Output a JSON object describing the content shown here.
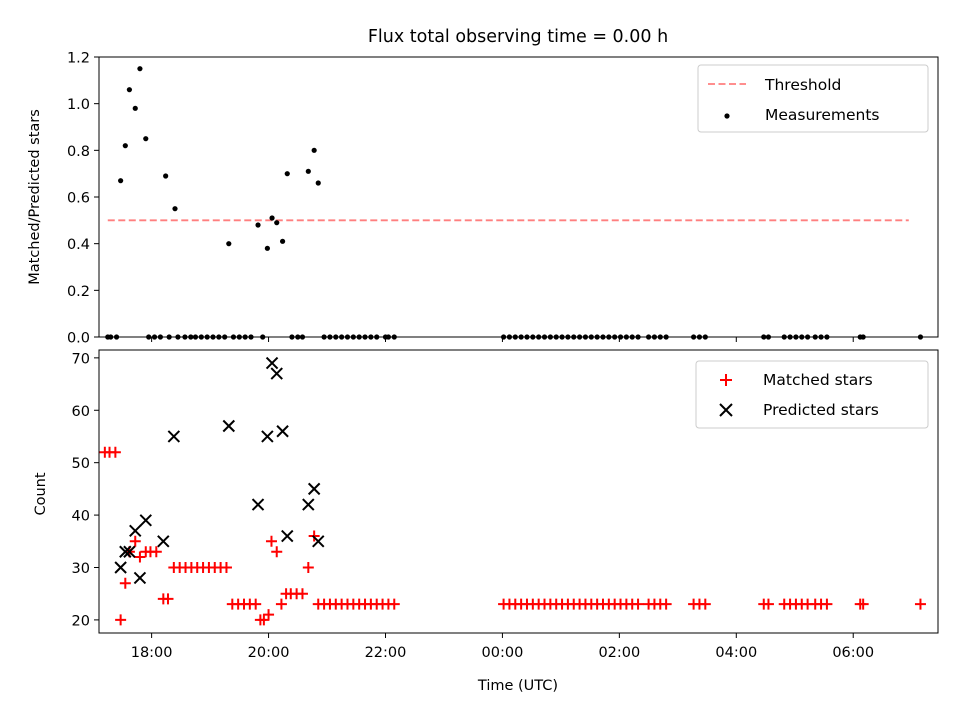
{
  "chart_data": [
    {
      "type": "scatter",
      "title": "Flux total observing time = 0.00 h",
      "ylabel": "Matched/Predicted stars",
      "xlabel": "",
      "xlim": [
        -6.9,
        7.45
      ],
      "ylim": [
        0,
        1.2
      ],
      "yticks": [
        0.0,
        0.2,
        0.4,
        0.6,
        0.8,
        1.0,
        1.2
      ],
      "ytick_labels": [
        "0.0",
        "0.2",
        "0.4",
        "0.6",
        "0.8",
        "1.0",
        "1.2"
      ],
      "grid": false,
      "legend": {
        "position": "top-right",
        "entries": [
          "Threshold",
          "Measurements"
        ]
      },
      "threshold": {
        "name": "Threshold",
        "value": 0.5,
        "x": [
          -6.75,
          6.95
        ],
        "color": "#ff7f7f"
      },
      "series": [
        {
          "name": "Measurements",
          "color": "#000000",
          "points": [
            [
              -6.75,
              0
            ],
            [
              -6.7,
              0
            ],
            [
              -6.6,
              0
            ],
            [
              -6.53,
              0.67
            ],
            [
              -6.45,
              0.82
            ],
            [
              -6.38,
              1.06
            ],
            [
              -6.28,
              0.98
            ],
            [
              -6.2,
              1.15
            ],
            [
              -6.1,
              0.85
            ],
            [
              -6.05,
              0
            ],
            [
              -5.95,
              0
            ],
            [
              -5.85,
              0
            ],
            [
              -5.76,
              0.69
            ],
            [
              -5.7,
              0
            ],
            [
              -5.6,
              0.55
            ],
            [
              -5.55,
              0
            ],
            [
              -5.43,
              0
            ],
            [
              -5.33,
              0
            ],
            [
              -5.25,
              0
            ],
            [
              -5.15,
              0
            ],
            [
              -5.05,
              0
            ],
            [
              -4.95,
              0
            ],
            [
              -4.85,
              0
            ],
            [
              -4.75,
              0
            ],
            [
              -4.68,
              0.4
            ],
            [
              -4.6,
              0
            ],
            [
              -4.5,
              0
            ],
            [
              -4.4,
              0
            ],
            [
              -4.3,
              0
            ],
            [
              -4.18,
              0.48
            ],
            [
              -4.1,
              0
            ],
            [
              -4.02,
              0.38
            ],
            [
              -3.94,
              0.51
            ],
            [
              -3.86,
              0.49
            ],
            [
              -3.76,
              0.41
            ],
            [
              -3.68,
              0.7
            ],
            [
              -3.6,
              0
            ],
            [
              -3.5,
              0
            ],
            [
              -3.42,
              0
            ],
            [
              -3.32,
              0.71
            ],
            [
              -3.22,
              0.8
            ],
            [
              -3.15,
              0.66
            ],
            [
              -3.05,
              0
            ],
            [
              -2.95,
              0
            ],
            [
              -2.85,
              0
            ],
            [
              -2.75,
              0
            ],
            [
              -2.65,
              0
            ],
            [
              -2.55,
              0
            ],
            [
              -2.45,
              0
            ],
            [
              -2.35,
              0
            ],
            [
              -2.25,
              0
            ],
            [
              -2.15,
              0
            ],
            [
              -2.0,
              0
            ],
            [
              -1.95,
              0
            ],
            [
              -1.85,
              0
            ],
            [
              0.02,
              0
            ],
            [
              0.12,
              0
            ],
            [
              0.22,
              0
            ],
            [
              0.32,
              0
            ],
            [
              0.42,
              0
            ],
            [
              0.52,
              0
            ],
            [
              0.62,
              0
            ],
            [
              0.72,
              0
            ],
            [
              0.82,
              0
            ],
            [
              0.92,
              0
            ],
            [
              1.02,
              0
            ],
            [
              1.12,
              0
            ],
            [
              1.22,
              0
            ],
            [
              1.32,
              0
            ],
            [
              1.42,
              0
            ],
            [
              1.52,
              0
            ],
            [
              1.62,
              0
            ],
            [
              1.72,
              0
            ],
            [
              1.82,
              0
            ],
            [
              1.92,
              0
            ],
            [
              2.02,
              0
            ],
            [
              2.12,
              0
            ],
            [
              2.22,
              0
            ],
            [
              2.32,
              0
            ],
            [
              2.5,
              0
            ],
            [
              2.6,
              0
            ],
            [
              2.7,
              0
            ],
            [
              2.8,
              0
            ],
            [
              3.27,
              0
            ],
            [
              3.37,
              0
            ],
            [
              3.47,
              0
            ],
            [
              4.47,
              0
            ],
            [
              4.55,
              0
            ],
            [
              4.82,
              0
            ],
            [
              4.92,
              0
            ],
            [
              5.02,
              0
            ],
            [
              5.12,
              0
            ],
            [
              5.22,
              0
            ],
            [
              5.35,
              0
            ],
            [
              5.45,
              0
            ],
            [
              5.55,
              0
            ],
            [
              6.12,
              0
            ],
            [
              6.17,
              0
            ],
            [
              7.15,
              0
            ]
          ]
        }
      ]
    },
    {
      "type": "scatter",
      "xlabel": "Time (UTC)",
      "ylabel": "Count",
      "xlim": [
        -6.9,
        7.45
      ],
      "ylim": [
        17.5,
        71.5
      ],
      "xticks": [
        -6,
        -4,
        -2,
        0,
        2,
        4,
        6
      ],
      "xtick_labels": [
        "18:00",
        "20:00",
        "22:00",
        "00:00",
        "02:00",
        "04:00",
        "06:00"
      ],
      "yticks": [
        20,
        30,
        40,
        50,
        60,
        70
      ],
      "ytick_labels": [
        "20",
        "30",
        "40",
        "50",
        "60",
        "70"
      ],
      "grid": false,
      "legend": {
        "position": "top-right",
        "entries": [
          "Matched stars",
          "Predicted stars"
        ]
      },
      "series": [
        {
          "name": "Matched stars",
          "marker": "plus",
          "color": "#ff0000",
          "points": [
            [
              -6.8,
              52
            ],
            [
              -6.72,
              52
            ],
            [
              -6.62,
              52
            ],
            [
              -6.53,
              20
            ],
            [
              -6.45,
              27
            ],
            [
              -6.38,
              33
            ],
            [
              -6.28,
              35
            ],
            [
              -6.2,
              32
            ],
            [
              -6.1,
              33
            ],
            [
              -6.02,
              33
            ],
            [
              -5.92,
              33
            ],
            [
              -5.8,
              24
            ],
            [
              -5.72,
              24
            ],
            [
              -5.62,
              30
            ],
            [
              -5.52,
              30
            ],
            [
              -5.42,
              30
            ],
            [
              -5.32,
              30
            ],
            [
              -5.22,
              30
            ],
            [
              -5.12,
              30
            ],
            [
              -5.02,
              30
            ],
            [
              -4.92,
              30
            ],
            [
              -4.82,
              30
            ],
            [
              -4.72,
              30
            ],
            [
              -4.62,
              23
            ],
            [
              -4.52,
              23
            ],
            [
              -4.42,
              23
            ],
            [
              -4.32,
              23
            ],
            [
              -4.22,
              23
            ],
            [
              -4.14,
              20
            ],
            [
              -4.08,
              20
            ],
            [
              -4.0,
              21
            ],
            [
              -3.95,
              35
            ],
            [
              -3.86,
              33
            ],
            [
              -3.78,
              23
            ],
            [
              -3.7,
              25
            ],
            [
              -3.62,
              25
            ],
            [
              -3.52,
              25
            ],
            [
              -3.42,
              25
            ],
            [
              -3.32,
              30
            ],
            [
              -3.22,
              36
            ],
            [
              -3.15,
              23
            ],
            [
              -3.05,
              23
            ],
            [
              -2.95,
              23
            ],
            [
              -2.85,
              23
            ],
            [
              -2.75,
              23
            ],
            [
              -2.65,
              23
            ],
            [
              -2.55,
              23
            ],
            [
              -2.45,
              23
            ],
            [
              -2.35,
              23
            ],
            [
              -2.25,
              23
            ],
            [
              -2.15,
              23
            ],
            [
              -2.05,
              23
            ],
            [
              -1.95,
              23
            ],
            [
              -1.85,
              23
            ],
            [
              0.02,
              23
            ],
            [
              0.12,
              23
            ],
            [
              0.22,
              23
            ],
            [
              0.32,
              23
            ],
            [
              0.42,
              23
            ],
            [
              0.52,
              23
            ],
            [
              0.62,
              23
            ],
            [
              0.72,
              23
            ],
            [
              0.82,
              23
            ],
            [
              0.92,
              23
            ],
            [
              1.02,
              23
            ],
            [
              1.12,
              23
            ],
            [
              1.22,
              23
            ],
            [
              1.32,
              23
            ],
            [
              1.42,
              23
            ],
            [
              1.52,
              23
            ],
            [
              1.62,
              23
            ],
            [
              1.72,
              23
            ],
            [
              1.82,
              23
            ],
            [
              1.92,
              23
            ],
            [
              2.02,
              23
            ],
            [
              2.12,
              23
            ],
            [
              2.22,
              23
            ],
            [
              2.32,
              23
            ],
            [
              2.5,
              23
            ],
            [
              2.6,
              23
            ],
            [
              2.7,
              23
            ],
            [
              2.8,
              23
            ],
            [
              3.27,
              23
            ],
            [
              3.37,
              23
            ],
            [
              3.47,
              23
            ],
            [
              4.47,
              23
            ],
            [
              4.55,
              23
            ],
            [
              4.82,
              23
            ],
            [
              4.92,
              23
            ],
            [
              5.02,
              23
            ],
            [
              5.12,
              23
            ],
            [
              5.22,
              23
            ],
            [
              5.35,
              23
            ],
            [
              5.45,
              23
            ],
            [
              5.55,
              23
            ],
            [
              6.12,
              23
            ],
            [
              6.17,
              23
            ],
            [
              7.15,
              23
            ]
          ]
        },
        {
          "name": "Predicted stars",
          "marker": "x",
          "color": "#000000",
          "points": [
            [
              -6.53,
              30
            ],
            [
              -6.45,
              33
            ],
            [
              -6.38,
              33
            ],
            [
              -6.28,
              37
            ],
            [
              -6.2,
              28
            ],
            [
              -6.1,
              39
            ],
            [
              -5.8,
              35
            ],
            [
              -5.62,
              55
            ],
            [
              -4.68,
              57
            ],
            [
              -4.18,
              42
            ],
            [
              -4.02,
              55
            ],
            [
              -3.94,
              69
            ],
            [
              -3.86,
              67
            ],
            [
              -3.76,
              56
            ],
            [
              -3.68,
              36
            ],
            [
              -3.32,
              42
            ],
            [
              -3.22,
              45
            ],
            [
              -3.15,
              35
            ]
          ]
        }
      ]
    }
  ]
}
